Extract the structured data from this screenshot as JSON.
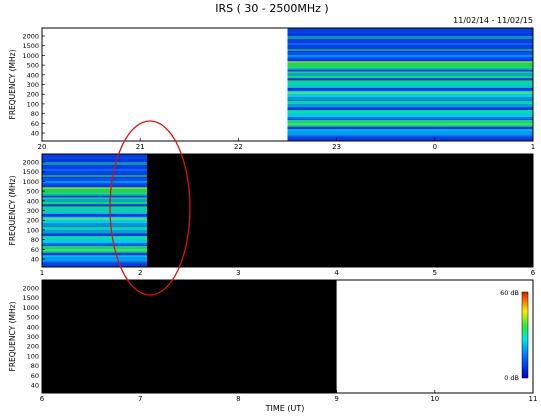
{
  "title": "IRS ( 30 - 2500MHz )",
  "date_range": "11/02/14 - 11/02/15",
  "xlabel": "TIME (UT)",
  "colorbar": {
    "max_label": "60 dB",
    "min_label": "0 dB"
  },
  "chart_data": [
    {
      "type": "heatmap",
      "panel": 1,
      "ylabel": "FREQUENCY (MHz)",
      "x_ticks": [
        "20",
        "21",
        "22",
        "23",
        "0",
        "1"
      ],
      "x_range": [
        20,
        25
      ],
      "y_ticks": [
        "2000",
        "1500",
        "1000",
        "500",
        "400",
        "300",
        "200",
        "100",
        "80",
        "60",
        "40"
      ],
      "data_start": 22.5,
      "data_end": 25,
      "color_levels": [
        {
          "freq": "40",
          "level": 0.35
        },
        {
          "freq": "60",
          "level": 0.55
        },
        {
          "freq": "80",
          "level": 0.45
        },
        {
          "freq": "100",
          "level": 0.5
        },
        {
          "freq": "200",
          "level": 0.45
        },
        {
          "freq": "300",
          "level": 0.5
        },
        {
          "freq": "400",
          "level": 0.55
        },
        {
          "freq": "500",
          "level": 0.6
        },
        {
          "freq": "1000",
          "level": 0.2
        },
        {
          "freq": "1500",
          "level": 0.15
        },
        {
          "freq": "2000",
          "level": 0.12
        }
      ]
    },
    {
      "type": "heatmap",
      "panel": 2,
      "ylabel": "FREQUENCY (MHz)",
      "x_ticks": [
        "1",
        "2",
        "3",
        "4",
        "5",
        "6"
      ],
      "x_range": [
        1,
        6
      ],
      "y_ticks": [
        "2000",
        "1500",
        "1000",
        "500",
        "400",
        "300",
        "200",
        "100",
        "80",
        "60",
        "40"
      ],
      "data_start": 1,
      "data_end": 2.07,
      "color_levels": [
        {
          "freq": "40",
          "level": 0.35
        },
        {
          "freq": "60",
          "level": 0.55
        },
        {
          "freq": "80",
          "level": 0.45
        },
        {
          "freq": "100",
          "level": 0.5
        },
        {
          "freq": "200",
          "level": 0.45
        },
        {
          "freq": "300",
          "level": 0.5
        },
        {
          "freq": "400",
          "level": 0.55
        },
        {
          "freq": "500",
          "level": 0.6
        },
        {
          "freq": "1000",
          "level": 0.2
        },
        {
          "freq": "1500",
          "level": 0.15
        },
        {
          "freq": "2000",
          "level": 0.12
        }
      ]
    },
    {
      "type": "heatmap",
      "panel": 3,
      "ylabel": "FREQUENCY (MHz)",
      "x_ticks": [
        "6",
        "7",
        "8",
        "9",
        "10",
        "11"
      ],
      "x_range": [
        6,
        11
      ],
      "y_ticks": [
        "2000",
        "1500",
        "1000",
        "500",
        "400",
        "300",
        "200",
        "100",
        "80",
        "60",
        "40"
      ],
      "data_start": 6,
      "data_end": 6,
      "color_levels": []
    }
  ]
}
